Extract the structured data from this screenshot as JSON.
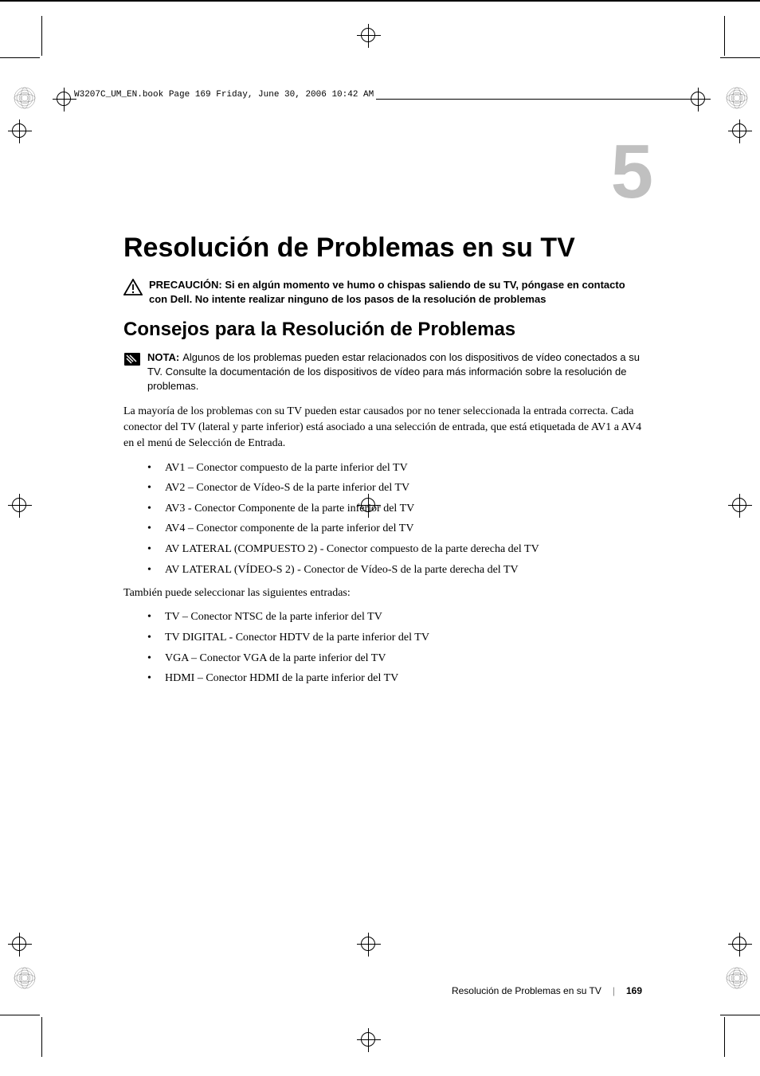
{
  "printMarks": {
    "headerFile": "W3207C_UM_EN.book  Page 169  Friday, June 30, 2006  10:42 AM"
  },
  "chapter": {
    "number": "5",
    "title": "Resolución de Problemas en su TV"
  },
  "caution": {
    "label": "PRECAUCIÓN:",
    "text": "Si en algún momento ve humo o chispas saliendo de su TV, póngase en contacto con Dell. No intente realizar ninguno de los pasos de la resolución de problemas"
  },
  "section": {
    "title": "Consejos para la Resolución de Problemas"
  },
  "note": {
    "label": "NOTA:",
    "text": "Algunos de los problemas pueden estar relacionados con los dispositivos de vídeo conectados a su TV. Consulte la documentación de los dispositivos de vídeo para más información sobre la resolución de problemas."
  },
  "body": {
    "intro": "La mayoría de los problemas con su TV pueden estar causados por no tener seleccionada la entrada correcta. Cada conector del TV (lateral y parte inferior) está asociado a una selección de entrada, que está etiquetada de AV1 a AV4 en el menú de Selección de Entrada.",
    "list1": [
      "AV1 – Conector compuesto de la parte inferior del TV",
      "AV2 – Conector de Vídeo-S de la parte inferior del TV",
      "AV3 - Conector Componente de la parte inferior del TV",
      "AV4 – Conector componente de la parte inferior del TV",
      "AV LATERAL (COMPUESTO 2) - Conector compuesto de la parte derecha del TV",
      "AV LATERAL (VÍDEO-S 2) - Conector de Vídeo-S de la parte derecha del TV"
    ],
    "mid": "También puede seleccionar las siguientes entradas:",
    "list2": [
      "TV – Conector NTSC de la parte inferior del TV",
      "TV DIGITAL - Conector HDTV de la parte inferior del TV",
      "VGA – Conector VGA de la parte inferior del TV",
      "HDMI – Conector HDMI de la parte inferior del TV"
    ]
  },
  "footer": {
    "section": "Resolución de Problemas en su TV",
    "page": "169"
  },
  "colors": {
    "chapterGray": "#c0c0c0",
    "text": "#000000",
    "background": "#ffffff"
  }
}
